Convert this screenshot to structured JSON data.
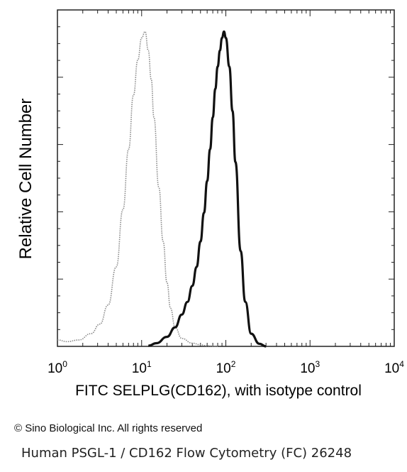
{
  "chart_data": {
    "type": "line",
    "xlabel": "FITC SELPLG(CD162), with isotype control",
    "ylabel": "Relative Cell Number",
    "x_scale": "log",
    "xlim": [
      1,
      10000
    ],
    "ylim": [
      0,
      1
    ],
    "x_ticks": [
      {
        "base": "10",
        "exp": "0",
        "value": 1
      },
      {
        "base": "10",
        "exp": "1",
        "value": 10
      },
      {
        "base": "10",
        "exp": "2",
        "value": 100
      },
      {
        "base": "10",
        "exp": "3",
        "value": 1000
      },
      {
        "base": "10",
        "exp": "4",
        "value": 10000
      }
    ],
    "grid": false,
    "legend": "none",
    "series": [
      {
        "style": "dotted-gray",
        "color": "#888888",
        "x": [
          1,
          1.3,
          1.8,
          2.5,
          3.2,
          4,
          5,
          6,
          7,
          8,
          9,
          10,
          11,
          12,
          13,
          14,
          16,
          18,
          20,
          22,
          25,
          30,
          40,
          50,
          60,
          80
        ],
        "y": [
          0.02,
          0.015,
          0.02,
          0.04,
          0.07,
          0.13,
          0.25,
          0.43,
          0.62,
          0.79,
          0.9,
          0.97,
          0.99,
          0.93,
          0.84,
          0.72,
          0.5,
          0.33,
          0.2,
          0.12,
          0.06,
          0.025,
          0.01,
          0.005,
          0.002,
          0
        ]
      },
      {
        "style": "solid-dark",
        "color": "#111111",
        "x": [
          12,
          15,
          20,
          25,
          30,
          35,
          40,
          45,
          50,
          55,
          60,
          65,
          70,
          75,
          80,
          85,
          90,
          95,
          100,
          110,
          120,
          130,
          150,
          170,
          200,
          250,
          300
        ],
        "y": [
          0.002,
          0.01,
          0.03,
          0.06,
          0.1,
          0.14,
          0.19,
          0.25,
          0.33,
          0.42,
          0.52,
          0.62,
          0.72,
          0.81,
          0.88,
          0.93,
          0.97,
          0.99,
          0.97,
          0.88,
          0.74,
          0.58,
          0.3,
          0.14,
          0.04,
          0.008,
          0
        ]
      }
    ]
  },
  "copyright": "© Sino Biological Inc. All rights reserved",
  "caption": "Human PSGL-1 / CD162 Flow Cytometry (FC) 26248"
}
